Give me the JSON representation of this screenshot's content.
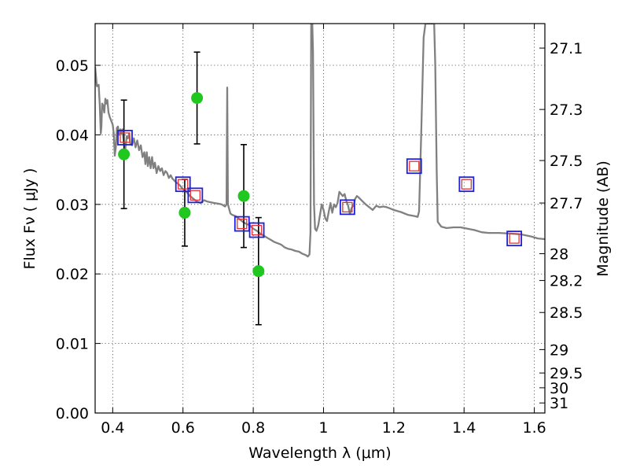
{
  "chart_data": {
    "type": "scatter",
    "xlabel": "Wavelength  λ (μm)",
    "ylabel": "Flux  Fν  ( μJy )",
    "ylabel_right": "Magnitude (AB)",
    "xlim": [
      0.35,
      1.63
    ],
    "ylim": [
      0.0,
      0.056
    ],
    "x_ticks": [
      0.4,
      0.6,
      0.8,
      1.0,
      1.2,
      1.4,
      1.6
    ],
    "x_tick_labels": [
      "0.4",
      "0.6",
      "0.8",
      "1",
      "1.2",
      "1.4",
      "1.6"
    ],
    "y_ticks": [
      0.0,
      0.01,
      0.02,
      0.03,
      0.04,
      0.05
    ],
    "y_tick_labels": [
      "0.00",
      "0.01",
      "0.02",
      "0.03",
      "0.04",
      "0.05"
    ],
    "right_ticks": [
      {
        "mag": 27.1,
        "label": "27.1"
      },
      {
        "mag": 27.3,
        "label": "27.3"
      },
      {
        "mag": 27.5,
        "label": "27.5"
      },
      {
        "mag": 27.7,
        "label": "27.7"
      },
      {
        "mag": 28.0,
        "label": "28"
      },
      {
        "mag": 28.2,
        "label": "28.2"
      },
      {
        "mag": 28.5,
        "label": "28.5"
      },
      {
        "mag": 29.0,
        "label": "29"
      },
      {
        "mag": 29.5,
        "label": "29.5"
      },
      {
        "mag": 30.0,
        "label": "30"
      },
      {
        "mag": 31.0,
        "label": "31"
      }
    ],
    "grid": true,
    "colors": {
      "model_spectrum": "#808080",
      "observed": "#1fc71f",
      "error_bars": "#000000",
      "model_photometry": "#1f1fdd",
      "model_photometry_inner": "#e53333"
    },
    "series": [
      {
        "kind": "line",
        "points": [
          [
            0.35,
            0.0498
          ],
          [
            0.355,
            0.047
          ],
          [
            0.36,
            0.0472
          ],
          [
            0.363,
            0.0445
          ],
          [
            0.366,
            0.0402
          ],
          [
            0.368,
            0.0412
          ],
          [
            0.37,
            0.0445
          ],
          [
            0.373,
            0.0442
          ],
          [
            0.376,
            0.0432
          ],
          [
            0.379,
            0.0452
          ],
          [
            0.382,
            0.0445
          ],
          [
            0.385,
            0.045
          ],
          [
            0.388,
            0.0432
          ],
          [
            0.392,
            0.0425
          ],
          [
            0.396,
            0.042
          ],
          [
            0.4,
            0.0415
          ],
          [
            0.403,
            0.0402
          ],
          [
            0.406,
            0.037
          ],
          [
            0.409,
            0.0383
          ],
          [
            0.412,
            0.041
          ],
          [
            0.415,
            0.0412
          ],
          [
            0.418,
            0.04
          ],
          [
            0.422,
            0.0408
          ],
          [
            0.425,
            0.0402
          ],
          [
            0.428,
            0.0408
          ],
          [
            0.43,
            0.0395
          ],
          [
            0.433,
            0.0383
          ],
          [
            0.436,
            0.038
          ],
          [
            0.44,
            0.0398
          ],
          [
            0.443,
            0.0395
          ],
          [
            0.447,
            0.0402
          ],
          [
            0.45,
            0.0388
          ],
          [
            0.455,
            0.0385
          ],
          [
            0.46,
            0.0395
          ],
          [
            0.465,
            0.0382
          ],
          [
            0.47,
            0.0392
          ],
          [
            0.475,
            0.0378
          ],
          [
            0.48,
            0.0385
          ],
          [
            0.485,
            0.0368
          ],
          [
            0.49,
            0.0375
          ],
          [
            0.493,
            0.0358
          ],
          [
            0.497,
            0.0375
          ],
          [
            0.5,
            0.0355
          ],
          [
            0.504,
            0.0368
          ],
          [
            0.508,
            0.0352
          ],
          [
            0.512,
            0.0368
          ],
          [
            0.516,
            0.0352
          ],
          [
            0.52,
            0.036
          ],
          [
            0.525,
            0.0345
          ],
          [
            0.53,
            0.0355
          ],
          [
            0.535,
            0.0348
          ],
          [
            0.54,
            0.0352
          ],
          [
            0.545,
            0.0342
          ],
          [
            0.55,
            0.0348
          ],
          [
            0.555,
            0.0345
          ],
          [
            0.56,
            0.0338
          ],
          [
            0.565,
            0.0342
          ],
          [
            0.57,
            0.0337
          ],
          [
            0.58,
            0.0332
          ],
          [
            0.59,
            0.0328
          ],
          [
            0.6,
            0.0322
          ],
          [
            0.61,
            0.0318
          ],
          [
            0.62,
            0.0312
          ],
          [
            0.63,
            0.0308
          ],
          [
            0.64,
            0.0304
          ],
          [
            0.65,
            0.0302
          ],
          [
            0.66,
            0.0306
          ],
          [
            0.67,
            0.0304
          ],
          [
            0.68,
            0.0303
          ],
          [
            0.69,
            0.0302
          ],
          [
            0.7,
            0.0301
          ],
          [
            0.71,
            0.03
          ],
          [
            0.72,
            0.0297
          ],
          [
            0.724,
            0.03
          ],
          [
            0.726,
            0.0468
          ],
          [
            0.728,
            0.03
          ],
          [
            0.735,
            0.0287
          ],
          [
            0.74,
            0.0285
          ],
          [
            0.75,
            0.0283
          ],
          [
            0.76,
            0.0279
          ],
          [
            0.77,
            0.0275
          ],
          [
            0.78,
            0.0272
          ],
          [
            0.79,
            0.027
          ],
          [
            0.8,
            0.0265
          ],
          [
            0.81,
            0.0262
          ],
          [
            0.82,
            0.0258
          ],
          [
            0.83,
            0.0255
          ],
          [
            0.84,
            0.0252
          ],
          [
            0.85,
            0.0249
          ],
          [
            0.86,
            0.0246
          ],
          [
            0.87,
            0.0244
          ],
          [
            0.88,
            0.0242
          ],
          [
            0.89,
            0.0238
          ],
          [
            0.9,
            0.0236
          ],
          [
            0.91,
            0.0235
          ],
          [
            0.92,
            0.0233
          ],
          [
            0.93,
            0.0232
          ],
          [
            0.94,
            0.0229
          ],
          [
            0.95,
            0.0227
          ],
          [
            0.955,
            0.0225
          ],
          [
            0.96,
            0.0228
          ],
          [
            0.963,
            0.026
          ],
          [
            0.965,
            0.056
          ],
          [
            0.968,
            0.056
          ],
          [
            0.97,
            0.052
          ],
          [
            0.973,
            0.03
          ],
          [
            0.976,
            0.0265
          ],
          [
            0.98,
            0.0262
          ],
          [
            0.985,
            0.027
          ],
          [
            0.99,
            0.0285
          ],
          [
            0.995,
            0.03
          ],
          [
            1.0,
            0.0292
          ],
          [
            1.005,
            0.028
          ],
          [
            1.01,
            0.0276
          ],
          [
            1.015,
            0.029
          ],
          [
            1.02,
            0.0302
          ],
          [
            1.025,
            0.0288
          ],
          [
            1.03,
            0.03
          ],
          [
            1.035,
            0.0296
          ],
          [
            1.04,
            0.0302
          ],
          [
            1.045,
            0.0318
          ],
          [
            1.05,
            0.0315
          ],
          [
            1.055,
            0.0312
          ],
          [
            1.06,
            0.0315
          ],
          [
            1.065,
            0.0305
          ],
          [
            1.07,
            0.0298
          ],
          [
            1.075,
            0.0286
          ],
          [
            1.08,
            0.0295
          ],
          [
            1.085,
            0.0298
          ],
          [
            1.09,
            0.0308
          ],
          [
            1.095,
            0.0312
          ],
          [
            1.1,
            0.031
          ],
          [
            1.11,
            0.0305
          ],
          [
            1.12,
            0.03
          ],
          [
            1.13,
            0.0296
          ],
          [
            1.14,
            0.0292
          ],
          [
            1.15,
            0.0298
          ],
          [
            1.16,
            0.0296
          ],
          [
            1.17,
            0.0297
          ],
          [
            1.18,
            0.0296
          ],
          [
            1.19,
            0.0294
          ],
          [
            1.2,
            0.0292
          ],
          [
            1.22,
            0.0289
          ],
          [
            1.24,
            0.0285
          ],
          [
            1.26,
            0.0283
          ],
          [
            1.268,
            0.0282
          ],
          [
            1.272,
            0.029
          ],
          [
            1.278,
            0.04
          ],
          [
            1.285,
            0.054
          ],
          [
            1.29,
            0.056
          ],
          [
            1.315,
            0.056
          ],
          [
            1.318,
            0.05
          ],
          [
            1.322,
            0.035
          ],
          [
            1.325,
            0.0275
          ],
          [
            1.335,
            0.0268
          ],
          [
            1.35,
            0.0266
          ],
          [
            1.37,
            0.0267
          ],
          [
            1.39,
            0.0267
          ],
          [
            1.41,
            0.0265
          ],
          [
            1.43,
            0.0263
          ],
          [
            1.45,
            0.026
          ],
          [
            1.47,
            0.0259
          ],
          [
            1.5,
            0.0259
          ],
          [
            1.53,
            0.0258
          ],
          [
            1.56,
            0.0257
          ],
          [
            1.59,
            0.0254
          ],
          [
            1.61,
            0.0251
          ],
          [
            1.63,
            0.025
          ]
        ]
      },
      {
        "kind": "scatter",
        "marker": "circle",
        "x": [
          0.432,
          0.605,
          0.64,
          0.773,
          0.815
        ],
        "y": [
          0.0372,
          0.0288,
          0.0453,
          0.0312,
          0.0204
        ],
        "yerr": [
          0.0078,
          0.0048,
          0.0066,
          0.0074,
          0.0077
        ]
      },
      {
        "kind": "scatter",
        "marker": "square",
        "x": [
          0.435,
          0.6,
          0.635,
          0.768,
          0.81,
          1.068,
          1.258,
          1.407,
          1.543
        ],
        "y": [
          0.0396,
          0.0329,
          0.0313,
          0.0272,
          0.0263,
          0.0296,
          0.0355,
          0.0329,
          0.0251
        ]
      }
    ]
  }
}
